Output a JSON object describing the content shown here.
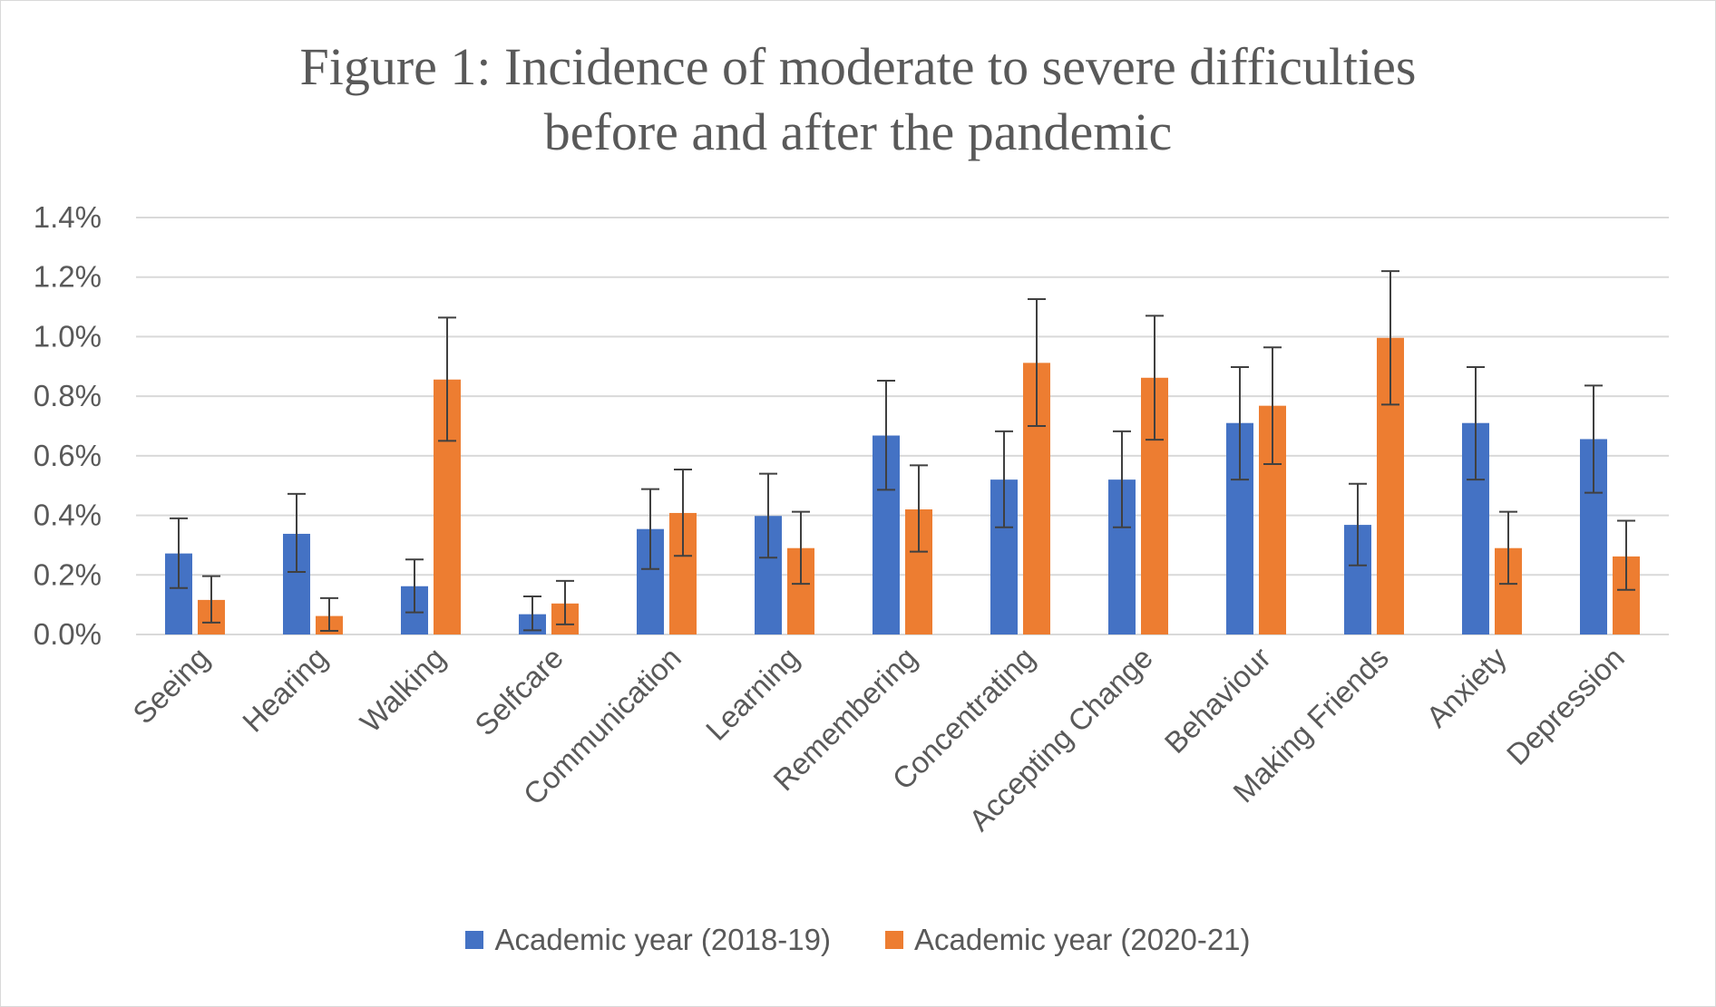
{
  "chart_data": {
    "type": "bar",
    "title_lines": [
      "Figure 1: Incidence of moderate to severe difficulties",
      "before and after the pandemic"
    ],
    "xlabel": "",
    "ylabel": "",
    "ylim": [
      0,
      0.014
    ],
    "yticks": [
      {
        "value": 0.0,
        "label": "0.0%"
      },
      {
        "value": 0.002,
        "label": "0.2%"
      },
      {
        "value": 0.004,
        "label": "0.4%"
      },
      {
        "value": 0.006,
        "label": "0.6%"
      },
      {
        "value": 0.008,
        "label": "0.8%"
      },
      {
        "value": 0.01,
        "label": "1.0%"
      },
      {
        "value": 0.012,
        "label": "1.2%"
      },
      {
        "value": 0.014,
        "label": "1.4%"
      }
    ],
    "grid": true,
    "legend_position": "bottom",
    "error_bars": true,
    "categories": [
      "Seeing",
      "Hearing",
      "Walking",
      "Selfcare",
      "Communication",
      "Learning",
      "Remembering",
      "Concentrating",
      "Accepting Change",
      "Behaviour",
      "Making Friends",
      "Anxiety",
      "Depression"
    ],
    "series": [
      {
        "name": "Academic year (2018-19)",
        "color": "#4472c4",
        "values": [
          0.00272,
          0.00338,
          0.00162,
          0.00068,
          0.00354,
          0.00398,
          0.00668,
          0.0052,
          0.0052,
          0.0071,
          0.00368,
          0.0071,
          0.00656
        ],
        "err_low": [
          0.00156,
          0.0021,
          0.00074,
          0.00014,
          0.0022,
          0.00258,
          0.00486,
          0.0036,
          0.0036,
          0.0052,
          0.00232,
          0.0052,
          0.00476
        ],
        "err_high": [
          0.0039,
          0.00472,
          0.00252,
          0.00128,
          0.00488,
          0.0054,
          0.00852,
          0.00682,
          0.00682,
          0.00898,
          0.00506,
          0.00898,
          0.00836
        ]
      },
      {
        "name": "Academic year (2020-21)",
        "color": "#ed7d31",
        "values": [
          0.00116,
          0.00062,
          0.00856,
          0.00104,
          0.00408,
          0.0029,
          0.0042,
          0.00912,
          0.00862,
          0.00768,
          0.00996,
          0.0029,
          0.00262
        ],
        "err_low": [
          0.0004,
          0.00012,
          0.0065,
          0.00034,
          0.00264,
          0.0017,
          0.00278,
          0.007,
          0.00654,
          0.00572,
          0.00772,
          0.0017,
          0.0015
        ],
        "err_high": [
          0.00196,
          0.00122,
          0.01064,
          0.0018,
          0.00554,
          0.00412,
          0.00568,
          0.01126,
          0.0107,
          0.00964,
          0.0122,
          0.00412,
          0.00382
        ]
      }
    ]
  }
}
